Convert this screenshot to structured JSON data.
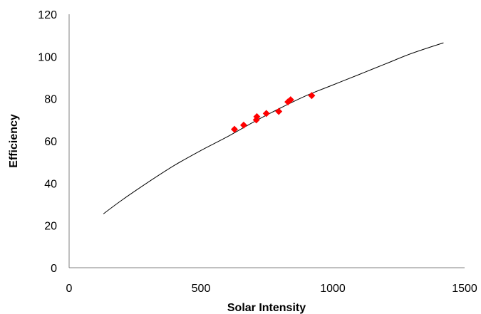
{
  "chart_data": {
    "type": "scatter",
    "xlabel": "Solar Intensity",
    "ylabel": "Efficiency",
    "xlim": [
      0,
      1500
    ],
    "ylim": [
      0,
      120
    ],
    "x_ticks": [
      "0",
      "500",
      "1000",
      "1500"
    ],
    "y_ticks": [
      "0",
      "20",
      "40",
      "60",
      "80",
      "100",
      "120"
    ],
    "grid": false,
    "legend": "none",
    "series": [
      {
        "marker": "diamond",
        "color": "#FF0000",
        "points": [
          {
            "x": 627,
            "y": 65.5
          },
          {
            "x": 662,
            "y": 67.5
          },
          {
            "x": 710,
            "y": 70
          },
          {
            "x": 712,
            "y": 71.5
          },
          {
            "x": 748,
            "y": 73
          },
          {
            "x": 795,
            "y": 74
          },
          {
            "x": 830,
            "y": 78.5
          },
          {
            "x": 840,
            "y": 79.5
          },
          {
            "x": 920,
            "y": 81.5
          }
        ]
      }
    ],
    "trendline": {
      "color": "#000000",
      "points": [
        {
          "x": 130,
          "y": 25.5
        },
        {
          "x": 200,
          "y": 32
        },
        {
          "x": 300,
          "y": 40.5
        },
        {
          "x": 400,
          "y": 48.5
        },
        {
          "x": 500,
          "y": 55.5
        },
        {
          "x": 600,
          "y": 62
        },
        {
          "x": 700,
          "y": 69
        },
        {
          "x": 800,
          "y": 75.5
        },
        {
          "x": 900,
          "y": 81.5
        },
        {
          "x": 1000,
          "y": 86.5
        },
        {
          "x": 1100,
          "y": 91.5
        },
        {
          "x": 1200,
          "y": 96.5
        },
        {
          "x": 1300,
          "y": 101.5
        },
        {
          "x": 1420,
          "y": 106.5
        }
      ]
    }
  }
}
